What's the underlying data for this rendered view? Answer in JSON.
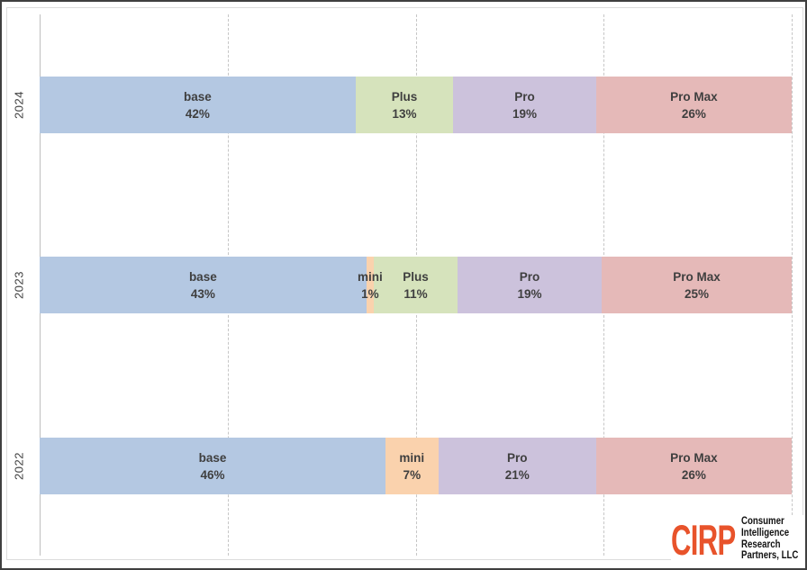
{
  "chart_data": {
    "type": "bar",
    "orientation": "horizontal-stacked",
    "title": "",
    "xlabel": "",
    "ylabel": "",
    "xlim": [
      0,
      100
    ],
    "gridlines_pct": [
      25,
      50,
      75,
      100
    ],
    "grid_style": "dashed",
    "legend": "none",
    "value_suffix": "%",
    "categories": [
      "2024",
      "2023",
      "2022"
    ],
    "colors": {
      "base": "#B4C8E2",
      "mini": "#FAD2AD",
      "Plus": "#D6E3BC",
      "Pro": "#CCC2DC",
      "Pro Max": "#E5B9B8"
    },
    "rows": [
      {
        "year": "2024",
        "segments": [
          {
            "label": "base",
            "value": 42,
            "display": "42%"
          },
          {
            "label": "Plus",
            "value": 13,
            "display": "13%"
          },
          {
            "label": "Pro",
            "value": 19,
            "display": "19%"
          },
          {
            "label": "Pro Max",
            "value": 26,
            "display": "26%"
          }
        ]
      },
      {
        "year": "2023",
        "segments": [
          {
            "label": "base",
            "value": 43,
            "display": "43%"
          },
          {
            "label": "mini",
            "value": 1,
            "display": "1%"
          },
          {
            "label": "Plus",
            "value": 11,
            "display": "11%"
          },
          {
            "label": "Pro",
            "value": 19,
            "display": "19%"
          },
          {
            "label": "Pro Max",
            "value": 25,
            "display": "25%"
          }
        ]
      },
      {
        "year": "2022",
        "segments": [
          {
            "label": "base",
            "value": 46,
            "display": "46%"
          },
          {
            "label": "mini",
            "value": 7,
            "display": "7%"
          },
          {
            "label": "Pro",
            "value": 21,
            "display": "21%"
          },
          {
            "label": "Pro Max",
            "value": 26,
            "display": "26%"
          }
        ]
      }
    ]
  },
  "branding": {
    "logo_text": "CIRP",
    "logo_color": "#E8532B",
    "company_lines": [
      "Consumer",
      "Intelligence",
      "Research",
      "Partners, LLC"
    ]
  }
}
